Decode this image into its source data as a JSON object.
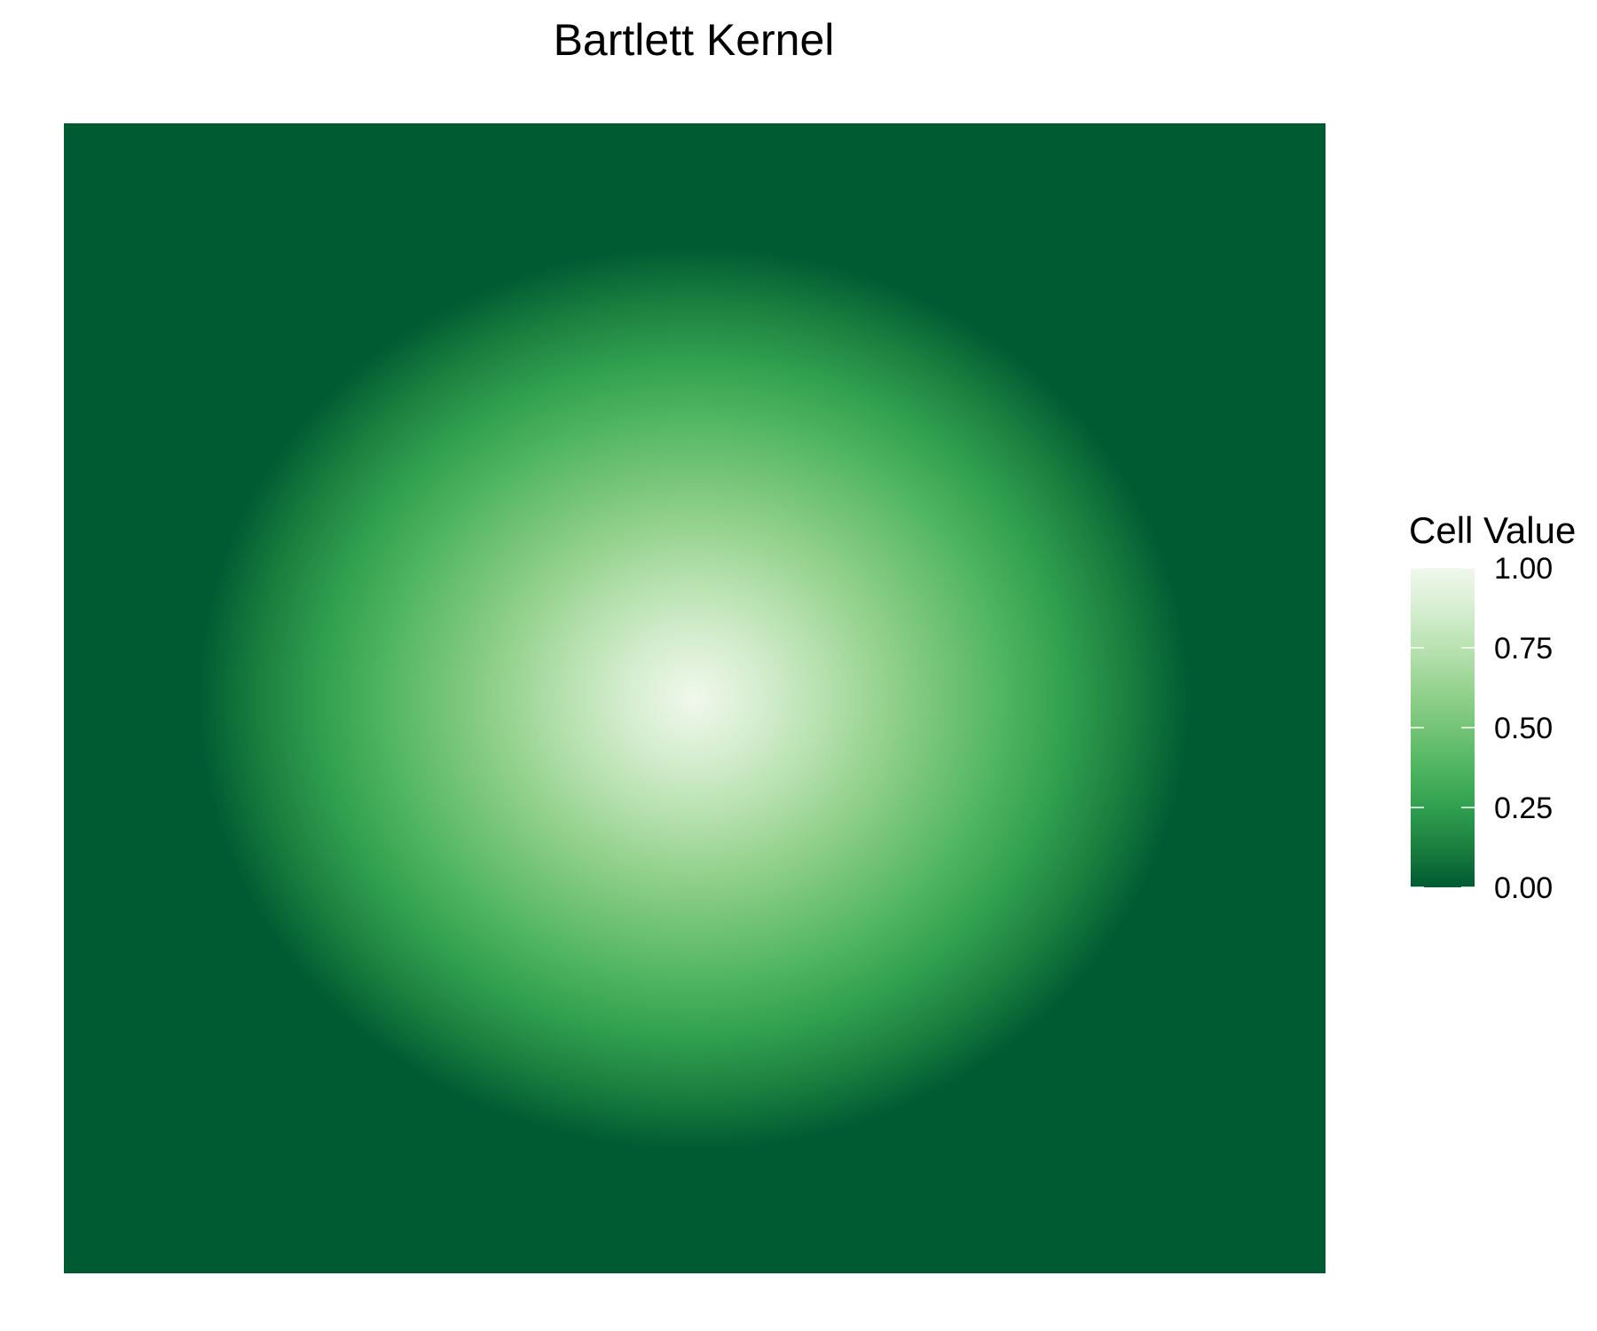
{
  "chart_data": {
    "type": "heatmap",
    "title": "Bartlett Kernel",
    "kernel": "bartlett",
    "kernel_shape": "radial, linearly decreasing from the center",
    "center_value": 1.0,
    "edge_value": 0.0,
    "value_range": [
      0,
      1
    ],
    "axes_visible": false,
    "grid": false,
    "legend": {
      "title": "Cell Value",
      "placement": "right",
      "type": "continuous colorbar",
      "ticks": [
        1.0,
        0.75,
        0.5,
        0.25,
        0.0
      ],
      "tick_labels": [
        "1.00",
        "0.75",
        "0.50",
        "0.25",
        "0.00"
      ]
    },
    "colorscale": [
      {
        "value": 0.0,
        "color": "#005a32"
      },
      {
        "value": 0.125,
        "color": "#1b7f3f"
      },
      {
        "value": 0.25,
        "color": "#30a04f"
      },
      {
        "value": 0.375,
        "color": "#4fb561"
      },
      {
        "value": 0.5,
        "color": "#74c476"
      },
      {
        "value": 0.625,
        "color": "#97d391"
      },
      {
        "value": 0.75,
        "color": "#b9e2b1"
      },
      {
        "value": 0.875,
        "color": "#d7eed2"
      },
      {
        "value": 1.0,
        "color": "#f0f8ec"
      }
    ]
  }
}
